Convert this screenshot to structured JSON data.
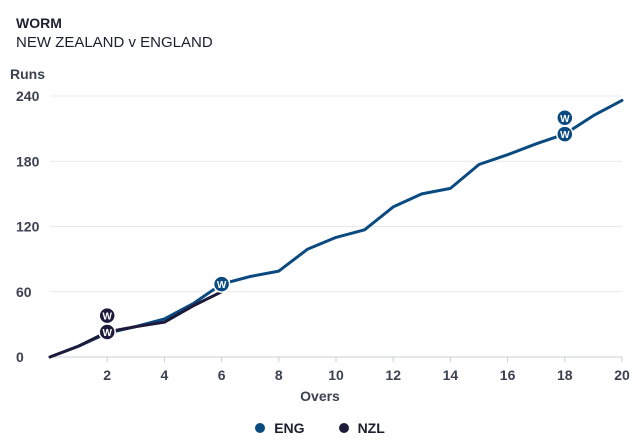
{
  "header": {
    "title": "WORM",
    "subtitle": "NEW ZEALAND v ENGLAND"
  },
  "chart_data": {
    "type": "line",
    "title": "WORM",
    "subtitle": "NEW ZEALAND v ENGLAND",
    "xlabel": "Overs",
    "ylabel": "Runs",
    "xlim": [
      0,
      20
    ],
    "ylim": [
      0,
      240
    ],
    "xticks": [
      2,
      4,
      6,
      8,
      10,
      12,
      14,
      16,
      18,
      20
    ],
    "yticks": [
      0,
      60,
      120,
      180,
      240
    ],
    "wicket_marker_label": "W",
    "legend_position": "bottom-center",
    "series": [
      {
        "name": "ENG",
        "color": "#0a4a80",
        "x": [
          0,
          1,
          2,
          3,
          4,
          5,
          6,
          7,
          8,
          9,
          10,
          11,
          12,
          13,
          14,
          15,
          16,
          17,
          18,
          19,
          20
        ],
        "y": [
          0,
          10,
          22,
          28,
          35,
          49,
          67,
          74,
          79,
          99,
          110,
          117,
          138,
          150,
          155,
          177,
          186,
          196,
          205,
          222,
          236
        ],
        "wickets": [
          {
            "over": 6,
            "runs": 67
          },
          {
            "over": 18,
            "runs": 205
          },
          {
            "over": 18,
            "runs": 220
          }
        ]
      },
      {
        "name": "NZL",
        "color": "#1e1a3c",
        "x": [
          0,
          1,
          2,
          3,
          4,
          5,
          6
        ],
        "y": [
          0,
          10,
          23,
          28,
          32,
          47,
          60
        ],
        "wickets": [
          {
            "over": 2,
            "runs": 23
          },
          {
            "over": 2,
            "runs": 38
          }
        ]
      }
    ]
  },
  "legend": [
    {
      "label": "ENG",
      "color": "#0a4a80"
    },
    {
      "label": "NZL",
      "color": "#1e1a3c"
    }
  ]
}
